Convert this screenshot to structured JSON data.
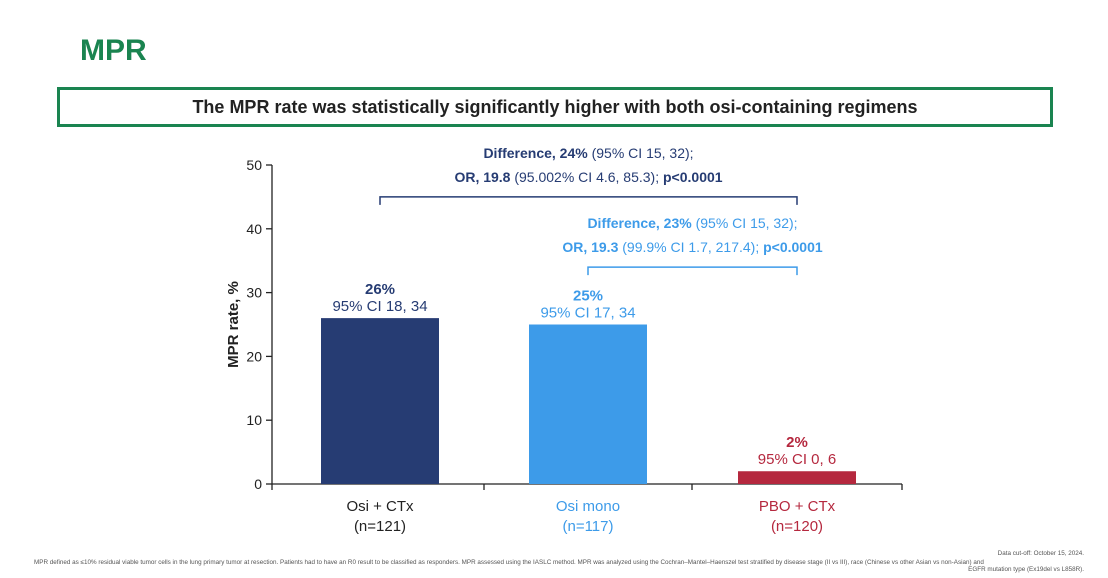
{
  "title": "MPR",
  "headline": "The MPR rate was statistically significantly higher with both osi-containing regimens",
  "colors": {
    "brand_green": "#1a8450",
    "navy": "#263c73",
    "light_blue": "#3d9be9",
    "red": "#b5283e"
  },
  "chart_data": {
    "type": "bar",
    "ylabel": "MPR rate, %",
    "ylim": [
      0,
      50
    ],
    "yticks": [
      "0",
      "10",
      "20",
      "30",
      "40",
      "50"
    ],
    "bars": [
      {
        "label": "Osi + CTx",
        "n": "(n=121)",
        "value": 26,
        "pct": "26%",
        "ci": "95% CI 18, 34",
        "color": "#263c73"
      },
      {
        "label": "Osi mono",
        "n": "(n=117)",
        "value": 25,
        "pct": "25%",
        "ci": "95% CI 17, 34",
        "color": "#3d9be9"
      },
      {
        "label": "PBO + CTx",
        "n": "(n=120)",
        "value": 2,
        "pct": "2%",
        "ci": "95% CI 0, 6",
        "color": "#b5283e"
      }
    ],
    "comparisons": [
      {
        "color": "#263c73",
        "from": 0,
        "to": 2,
        "bracket_y": 45,
        "line1_bold": "Difference, 24%",
        "line1_rest": " (95% CI 15, 32);",
        "line2_bold": "OR, 19.8",
        "line2_rest": " (95.002% CI 4.6, 85.3); ",
        "line2_p": "p<0.0001"
      },
      {
        "color": "#3d9be9",
        "from": 1,
        "to": 2,
        "bracket_y": 34,
        "line1_bold": "Difference, 23%",
        "line1_rest": " (95% CI 15, 32);",
        "line2_bold": "OR, 19.3",
        "line2_rest": " (99.9% CI 1.7, 217.4); ",
        "line2_p": "p<0.0001"
      }
    ]
  },
  "footnotes": {
    "definition": "MPR defined as ≤10% residual viable tumor cells in the lung primary tumor at resection. Patients had to have an R0 result to be classified as responders. MPR assessed using the IASLC method. MPR was analyzed using the Cochran–Mantel–Haenszel test stratified by disease stage (II vs III), race (Chinese vs other Asian vs non-Asian) and",
    "continuation": "EGFR mutation type (Ex19del vs L858R).",
    "data_cutoff": "Data cut-off: October 15, 2024."
  }
}
